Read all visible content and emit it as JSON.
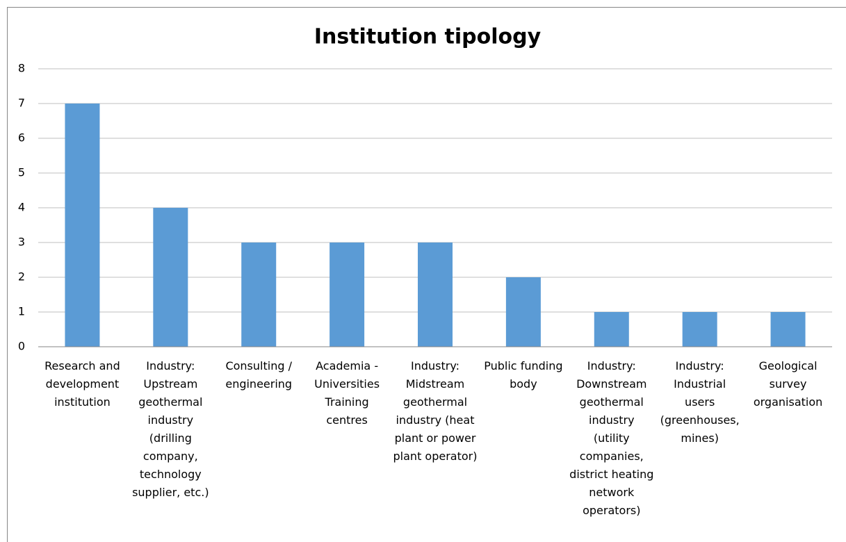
{
  "chart_data": {
    "type": "bar",
    "title": "Institution tipology",
    "categories": [
      "Research and development institution",
      "Industry: Upstream geothermal industry (drilling company, technology supplier, etc.)",
      "Consulting / engineering",
      "Academia - Universities Training centres",
      "Industry: Midstream geothermal industry (heat plant or power plant operator)",
      "Public funding body",
      "Industry: Downstream geothermal industry (utility companies, district heating network operators)",
      "Industry: Industrial users (greenhouses, mines)",
      "Geological survey organisation"
    ],
    "values": [
      7,
      4,
      3,
      3,
      3,
      2,
      1,
      1,
      1
    ],
    "color": "#5b9bd5",
    "ylim": [
      0,
      8
    ],
    "yticks": [
      0,
      1,
      2,
      3,
      4,
      5,
      6,
      7,
      8
    ],
    "grid": true
  }
}
